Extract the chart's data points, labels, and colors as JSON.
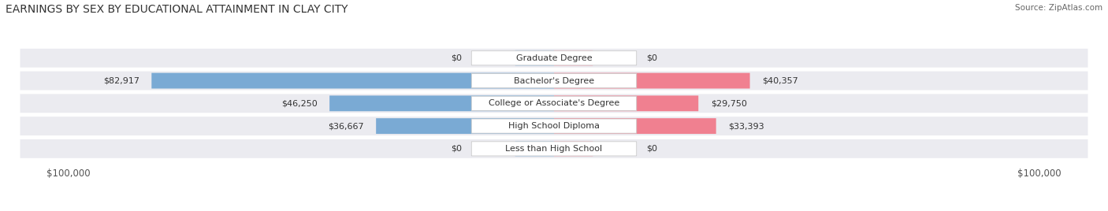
{
  "title": "EARNINGS BY SEX BY EDUCATIONAL ATTAINMENT IN CLAY CITY",
  "source": "Source: ZipAtlas.com",
  "categories": [
    "Less than High School",
    "High School Diploma",
    "College or Associate's Degree",
    "Bachelor's Degree",
    "Graduate Degree"
  ],
  "male_values": [
    0,
    36667,
    46250,
    82917,
    0
  ],
  "female_values": [
    0,
    33393,
    29750,
    40357,
    0
  ],
  "male_labels": [
    "$0",
    "$36,667",
    "$46,250",
    "$82,917",
    "$0"
  ],
  "female_labels": [
    "$0",
    "$33,393",
    "$29,750",
    "$40,357",
    "$0"
  ],
  "male_color": "#7aaad4",
  "female_color": "#f08090",
  "male_color_light": "#b0cce8",
  "female_color_light": "#f4b8c4",
  "row_bg_color": "#ebebf0",
  "max_value": 100000,
  "xlabel_left": "$100,000",
  "xlabel_right": "$100,000",
  "title_fontsize": 10,
  "tick_fontsize": 8.5,
  "bar_label_fontsize": 8,
  "cat_label_fontsize": 8
}
